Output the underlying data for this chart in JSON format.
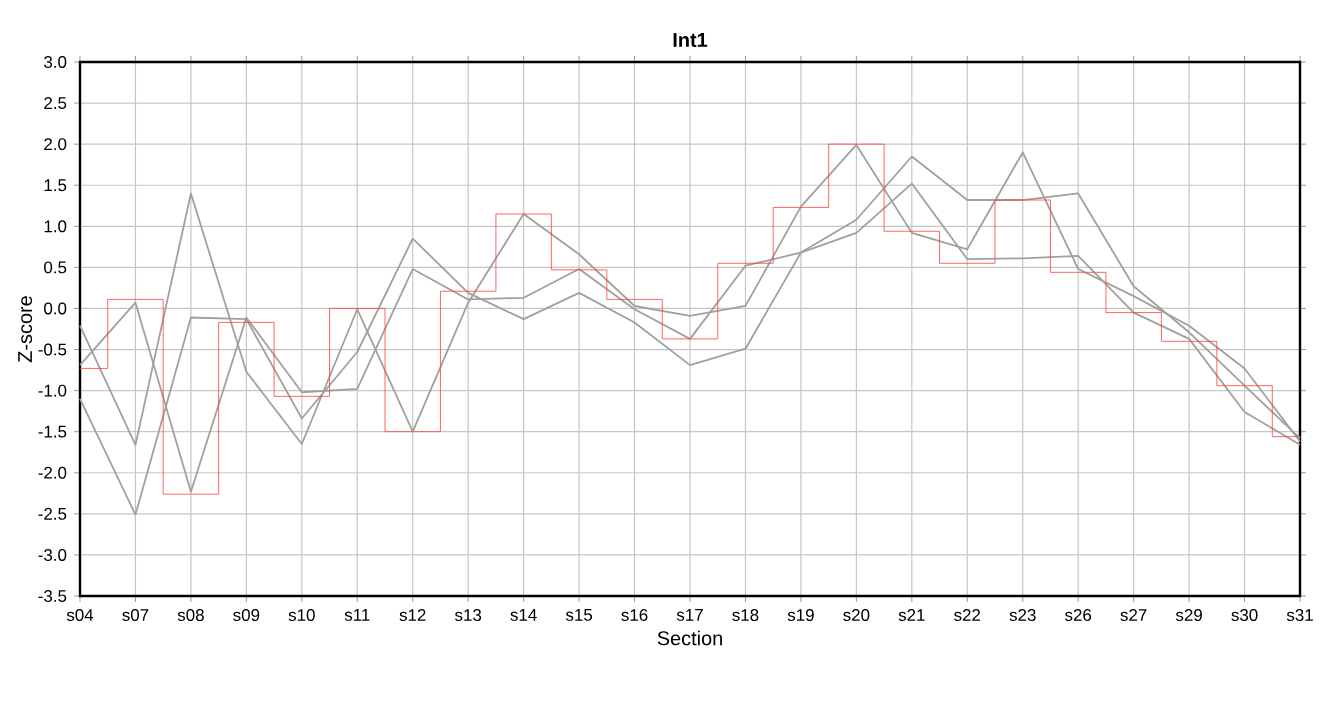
{
  "chart_data": {
    "type": "line",
    "title": "Int1",
    "xlabel": "Section",
    "ylabel": "Z-score",
    "categories": [
      "s04",
      "s07",
      "s08",
      "s09",
      "s10",
      "s11",
      "s12",
      "s13",
      "s14",
      "s15",
      "s16",
      "s17",
      "s18",
      "s19",
      "s20",
      "s21",
      "s22",
      "s23",
      "s26",
      "s27",
      "s29",
      "s30",
      "s31"
    ],
    "series": [
      {
        "color": "#a0a0a0",
        "values": [
          -0.21,
          -1.66,
          1.4,
          -0.77,
          -1.65,
          -0.01,
          -1.5,
          0.07,
          1.15,
          0.66,
          0.03,
          -0.09,
          0.03,
          1.24,
          1.99,
          0.92,
          0.72,
          1.9,
          0.48,
          0.15,
          -0.21,
          -0.73,
          -1.62
        ]
      },
      {
        "color": "#a0a0a0",
        "values": [
          -0.69,
          0.07,
          -2.23,
          -0.11,
          -1.02,
          -0.98,
          0.48,
          0.11,
          0.13,
          0.48,
          -0.01,
          -0.37,
          0.52,
          0.68,
          1.08,
          1.85,
          1.32,
          1.32,
          1.4,
          0.27,
          -0.29,
          -0.94,
          -1.58
        ]
      },
      {
        "color": "#a0a0a0",
        "values": [
          -1.1,
          -2.51,
          -0.11,
          -0.13,
          -1.34,
          -0.53,
          0.85,
          0.19,
          -0.13,
          0.19,
          -0.17,
          -0.69,
          -0.49,
          0.68,
          0.92,
          1.52,
          0.6,
          0.61,
          0.64,
          -0.05,
          -0.37,
          -1.26,
          -1.66
        ]
      },
      {
        "type": "step",
        "color": "#ff4040",
        "values": [
          -0.73,
          0.11,
          -2.26,
          -0.17,
          -1.07,
          0.0,
          -1.5,
          0.21,
          1.15,
          0.47,
          0.11,
          -0.37,
          0.55,
          1.23,
          2.0,
          0.94,
          0.55,
          1.32,
          0.44,
          -0.05,
          -0.4,
          -0.94,
          -1.56
        ]
      }
    ],
    "ylim": [
      -3.5,
      3.0
    ],
    "yticks": [
      -3.5,
      {
        "value": -3,
        "label": "-3.0"
      },
      -2.5,
      {
        "value": -2,
        "label": "-2.0"
      },
      -1.5,
      {
        "value": -1,
        "label": "-1.0"
      },
      -0.5,
      {
        "value": 0,
        "label": "0.0"
      },
      0.5,
      {
        "value": 1,
        "label": "1.0"
      },
      1.5,
      {
        "value": 2,
        "label": "2.0"
      },
      2.5,
      {
        "value": 3,
        "label": "3.0"
      }
    ],
    "grid": true
  }
}
